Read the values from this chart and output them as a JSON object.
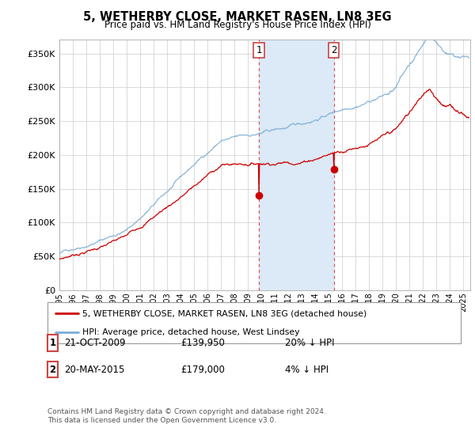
{
  "title": "5, WETHERBY CLOSE, MARKET RASEN, LN8 3EG",
  "subtitle": "Price paid vs. HM Land Registry's House Price Index (HPI)",
  "ylim": [
    0,
    370000
  ],
  "xlim_start": 1995.0,
  "xlim_end": 2025.5,
  "transaction1": {
    "date": 2009.81,
    "price": 139950,
    "label": "1"
  },
  "transaction2": {
    "date": 2015.38,
    "price": 179000,
    "label": "2"
  },
  "shade_color": "#dce9f7",
  "line_color_property": "#cc0000",
  "line_color_hpi": "#7aadd4",
  "legend_property": "5, WETHERBY CLOSE, MARKET RASEN, LN8 3EG (detached house)",
  "legend_hpi": "HPI: Average price, detached house, West Lindsey",
  "table_rows": [
    {
      "num": "1",
      "date": "21-OCT-2009",
      "price": "£139,950",
      "pct": "20% ↓ HPI"
    },
    {
      "num": "2",
      "date": "20-MAY-2015",
      "price": "£179,000",
      "pct": "4% ↓ HPI"
    }
  ],
  "footnote": "Contains HM Land Registry data © Crown copyright and database right 2024.\nThis data is licensed under the Open Government Licence v3.0.",
  "background_color": "#ffffff",
  "grid_color": "#cccccc"
}
